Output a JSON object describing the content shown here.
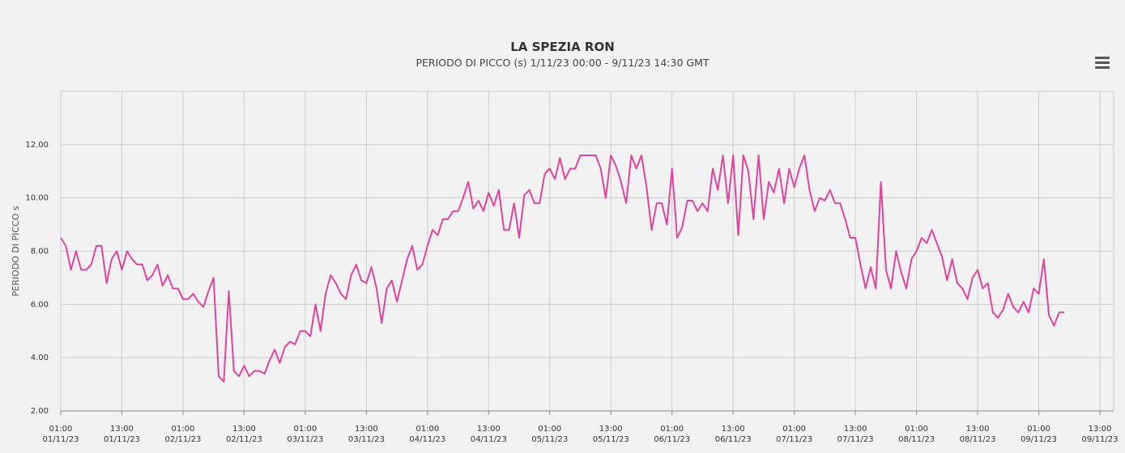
{
  "title": "LA SPEZIA RON",
  "subtitle": "PERIODO DI PICCO (s)   1/11/23 00:00 - 9/11/23 14:30 GMT",
  "menu_icon": "hamburger-menu-icon",
  "colors": {
    "series": "#e0449f",
    "grid": "#cccccc",
    "background": "#f2f2f2"
  },
  "chart_data": {
    "type": "line",
    "title": "LA SPEZIA RON",
    "subtitle": "PERIODO DI PICCO (s)   1/11/23 00:00 - 9/11/23 14:30 GMT",
    "ylabel": "PERIODO DI PICCO s",
    "xlabel": "",
    "ylim": [
      2,
      14
    ],
    "yticks": [
      "2.00",
      "4.00",
      "6.00",
      "8.00",
      "10.00",
      "12.00"
    ],
    "xticks": [
      {
        "time": "01:00",
        "date": "01/11/23"
      },
      {
        "time": "13:00",
        "date": "01/11/23"
      },
      {
        "time": "01:00",
        "date": "02/11/23"
      },
      {
        "time": "13:00",
        "date": "02/11/23"
      },
      {
        "time": "01:00",
        "date": "03/11/23"
      },
      {
        "time": "13:00",
        "date": "03/11/23"
      },
      {
        "time": "01:00",
        "date": "04/11/23"
      },
      {
        "time": "13:00",
        "date": "04/11/23"
      },
      {
        "time": "01:00",
        "date": "05/11/23"
      },
      {
        "time": "13:00",
        "date": "05/11/23"
      },
      {
        "time": "01:00",
        "date": "06/11/23"
      },
      {
        "time": "13:00",
        "date": "06/11/23"
      },
      {
        "time": "01:00",
        "date": "07/11/23"
      },
      {
        "time": "13:00",
        "date": "07/11/23"
      },
      {
        "time": "01:00",
        "date": "08/11/23"
      },
      {
        "time": "13:00",
        "date": "08/11/23"
      },
      {
        "time": "01:00",
        "date": "09/11/23"
      },
      {
        "time": "13:00",
        "date": "09/11/23"
      }
    ],
    "grid": true,
    "legend": "none",
    "series": [
      {
        "color": "#e0449f",
        "segments": [
          [
            [
              "01/11/23 01:00",
              8.5
            ],
            [
              "01/11/23 02:00",
              8.2
            ],
            [
              "01/11/23 03:00",
              7.3
            ],
            [
              "01/11/23 04:00",
              8.0
            ],
            [
              "01/11/23 05:00",
              7.3
            ],
            [
              "01/11/23 06:00",
              7.3
            ],
            [
              "01/11/23 07:00",
              7.5
            ],
            [
              "01/11/23 08:00",
              8.2
            ],
            [
              "01/11/23 09:00",
              8.2
            ],
            [
              "01/11/23 10:00",
              6.8
            ],
            [
              "01/11/23 11:00",
              7.7
            ],
            [
              "01/11/23 12:00",
              8.0
            ],
            [
              "01/11/23 13:00",
              7.3
            ],
            [
              "01/11/23 14:00",
              8.0
            ],
            [
              "01/11/23 15:00",
              7.7
            ],
            [
              "01/11/23 16:00",
              7.5
            ],
            [
              "01/11/23 17:00",
              7.5
            ],
            [
              "01/11/23 18:00",
              6.9
            ],
            [
              "01/11/23 19:00",
              7.1
            ],
            [
              "01/11/23 20:00",
              7.5
            ],
            [
              "01/11/23 21:00",
              6.7
            ],
            [
              "01/11/23 22:00",
              7.1
            ],
            [
              "01/11/23 23:00",
              6.6
            ],
            [
              "02/11/23 00:00",
              6.6
            ],
            [
              "02/11/23 01:00",
              6.2
            ],
            [
              "02/11/23 02:00",
              6.2
            ],
            [
              "02/11/23 03:00",
              6.4
            ],
            [
              "02/11/23 04:00",
              6.1
            ],
            [
              "02/11/23 05:00",
              5.9
            ],
            [
              "02/11/23 06:00",
              6.5
            ],
            [
              "02/11/23 07:00",
              7.0
            ],
            [
              "02/11/23 08:00",
              3.3
            ],
            [
              "02/11/23 09:00",
              3.1
            ],
            [
              "02/11/23 10:00",
              6.5
            ],
            [
              "02/11/23 11:00",
              3.5
            ],
            [
              "02/11/23 12:00",
              3.3
            ],
            [
              "02/11/23 13:00",
              3.7
            ],
            [
              "02/11/23 14:00",
              3.3
            ],
            [
              "02/11/23 15:00",
              3.5
            ],
            [
              "02/11/23 16:00",
              3.5
            ],
            [
              "02/11/23 17:00",
              3.4
            ],
            [
              "02/11/23 18:00",
              3.9
            ],
            [
              "02/11/23 19:00",
              4.3
            ],
            [
              "02/11/23 20:00",
              3.8
            ],
            [
              "02/11/23 21:00",
              4.4
            ],
            [
              "02/11/23 22:00",
              4.6
            ],
            [
              "02/11/23 23:00",
              4.5
            ],
            [
              "03/11/23 00:00",
              5.0
            ],
            [
              "03/11/23 01:00",
              5.0
            ],
            [
              "03/11/23 02:00",
              4.8
            ],
            [
              "03/11/23 03:00",
              6.0
            ],
            [
              "03/11/23 04:00",
              5.0
            ],
            [
              "03/11/23 05:00",
              6.4
            ],
            [
              "03/11/23 06:00",
              7.1
            ],
            [
              "03/11/23 07:00",
              6.8
            ],
            [
              "03/11/23 08:00",
              6.4
            ],
            [
              "03/11/23 09:00",
              6.2
            ],
            [
              "03/11/23 10:00",
              7.1
            ],
            [
              "03/11/23 11:00",
              7.5
            ],
            [
              "03/11/23 12:00",
              6.9
            ],
            [
              "03/11/23 13:00",
              6.8
            ],
            [
              "03/11/23 14:00",
              7.4
            ],
            [
              "03/11/23 15:00",
              6.6
            ],
            [
              "03/11/23 16:00",
              5.3
            ],
            [
              "03/11/23 17:00",
              6.6
            ],
            [
              "03/11/23 18:00",
              6.9
            ],
            [
              "03/11/23 19:00",
              6.1
            ],
            [
              "03/11/23 20:00",
              6.9
            ],
            [
              "03/11/23 21:00",
              7.7
            ],
            [
              "03/11/23 22:00",
              8.2
            ],
            [
              "03/11/23 23:00",
              7.3
            ],
            [
              "04/11/23 00:00",
              7.5
            ],
            [
              "04/11/23 01:00",
              8.2
            ],
            [
              "04/11/23 02:00",
              8.8
            ],
            [
              "04/11/23 03:00",
              8.6
            ],
            [
              "04/11/23 04:00",
              9.2
            ],
            [
              "04/11/23 05:00",
              9.2
            ],
            [
              "04/11/23 06:00",
              9.5
            ],
            [
              "04/11/23 07:00",
              9.5
            ],
            [
              "04/11/23 08:00",
              10.0
            ],
            [
              "04/11/23 09:00",
              10.6
            ],
            [
              "04/11/23 10:00",
              9.6
            ],
            [
              "04/11/23 11:00",
              9.9
            ],
            [
              "04/11/23 12:00",
              9.5
            ],
            [
              "04/11/23 13:00",
              10.2
            ],
            [
              "04/11/23 14:00",
              9.7
            ],
            [
              "04/11/23 15:00",
              10.3
            ],
            [
              "04/11/23 16:00",
              8.8
            ],
            [
              "04/11/23 17:00",
              8.8
            ],
            [
              "04/11/23 18:00",
              9.8
            ],
            [
              "04/11/23 19:00",
              8.5
            ],
            [
              "04/11/23 20:00",
              10.1
            ],
            [
              "04/11/23 21:00",
              10.3
            ],
            [
              "04/11/23 22:00",
              9.8
            ],
            [
              "04/11/23 23:00",
              9.8
            ],
            [
              "05/11/23 00:00",
              10.9
            ],
            [
              "05/11/23 01:00",
              11.1
            ],
            [
              "05/11/23 02:00",
              10.7
            ],
            [
              "05/11/23 03:00",
              11.5
            ],
            [
              "05/11/23 04:00",
              10.7
            ],
            [
              "05/11/23 05:00",
              11.1
            ],
            [
              "05/11/23 06:00",
              11.1
            ],
            [
              "05/11/23 07:00",
              11.6
            ],
            [
              "05/11/23 08:00",
              11.6
            ],
            [
              "05/11/23 09:00",
              11.6
            ],
            [
              "05/11/23 10:00",
              11.6
            ],
            [
              "05/11/23 11:00",
              11.1
            ],
            [
              "05/11/23 12:00",
              10.0
            ],
            [
              "05/11/23 13:00",
              11.6
            ],
            [
              "05/11/23 14:00",
              11.2
            ],
            [
              "05/11/23 15:00",
              10.6
            ],
            [
              "05/11/23 16:00",
              9.8
            ],
            [
              "05/11/23 17:00",
              11.6
            ],
            [
              "05/11/23 18:00",
              11.1
            ],
            [
              "05/11/23 19:00",
              11.6
            ],
            [
              "05/11/23 20:00",
              10.4
            ],
            [
              "05/11/23 21:00",
              8.8
            ],
            [
              "05/11/23 22:00",
              9.8
            ],
            [
              "05/11/23 23:00",
              9.8
            ],
            [
              "06/11/23 00:00",
              9.0
            ],
            [
              "06/11/23 01:00",
              11.1
            ],
            [
              "06/11/23 02:00",
              8.5
            ],
            [
              "06/11/23 03:00",
              8.9
            ],
            [
              "06/11/23 04:00",
              9.9
            ],
            [
              "06/11/23 05:00",
              9.9
            ],
            [
              "06/11/23 06:00",
              9.5
            ],
            [
              "06/11/23 07:00",
              9.8
            ],
            [
              "06/11/23 08:00",
              9.5
            ],
            [
              "06/11/23 09:00",
              11.1
            ],
            [
              "06/11/23 10:00",
              10.3
            ],
            [
              "06/11/23 11:00",
              11.6
            ],
            [
              "06/11/23 12:00",
              9.8
            ],
            [
              "06/11/23 13:00",
              11.6
            ],
            [
              "06/11/23 14:00",
              8.6
            ],
            [
              "06/11/23 15:00",
              11.6
            ],
            [
              "06/11/23 16:00",
              11.0
            ],
            [
              "06/11/23 17:00",
              9.2
            ],
            [
              "06/11/23 18:00",
              11.6
            ],
            [
              "06/11/23 19:00",
              9.2
            ],
            [
              "06/11/23 20:00",
              10.6
            ],
            [
              "06/11/23 21:00",
              10.2
            ],
            [
              "06/11/23 22:00",
              11.1
            ],
            [
              "06/11/23 23:00",
              9.8
            ],
            [
              "07/11/23 00:00",
              11.1
            ],
            [
              "07/11/23 01:00",
              10.4
            ],
            [
              "07/11/23 02:00",
              11.1
            ],
            [
              "07/11/23 03:00",
              11.6
            ],
            [
              "07/11/23 04:00",
              10.3
            ],
            [
              "07/11/23 05:00",
              9.5
            ],
            [
              "07/11/23 06:00",
              10.0
            ],
            [
              "07/11/23 07:00",
              9.9
            ],
            [
              "07/11/23 08:00",
              10.3
            ],
            [
              "07/11/23 09:00",
              9.8
            ],
            [
              "07/11/23 10:00",
              9.8
            ],
            [
              "07/11/23 11:00",
              9.2
            ],
            [
              "07/11/23 12:00",
              8.5
            ],
            [
              "07/11/23 13:00",
              8.5
            ],
            [
              "07/11/23 14:00",
              7.5
            ],
            [
              "07/11/23 15:00",
              6.6
            ],
            [
              "07/11/23 16:00",
              7.4
            ],
            [
              "07/11/23 17:00",
              6.6
            ],
            [
              "07/11/23 18:00",
              10.6
            ],
            [
              "07/11/23 19:00",
              7.3
            ],
            [
              "07/11/23 20:00",
              6.6
            ],
            [
              "07/11/23 21:00",
              8.0
            ],
            [
              "07/11/23 22:00",
              7.2
            ],
            [
              "07/11/23 23:00",
              6.6
            ],
            [
              "08/11/23 00:00",
              7.7
            ],
            [
              "08/11/23 01:00",
              8.0
            ],
            [
              "08/11/23 02:00",
              8.5
            ],
            [
              "08/11/23 03:00",
              8.3
            ],
            [
              "08/11/23 04:00",
              8.8
            ],
            [
              "08/11/23 05:00",
              8.3
            ],
            [
              "08/11/23 06:00",
              7.8
            ],
            [
              "08/11/23 07:00",
              6.9
            ],
            [
              "08/11/23 08:00",
              7.7
            ],
            [
              "08/11/23 09:00",
              6.8
            ],
            [
              "08/11/23 10:00",
              6.6
            ],
            [
              "08/11/23 11:00",
              6.2
            ],
            [
              "08/11/23 12:00",
              7.0
            ],
            [
              "08/11/23 13:00",
              7.3
            ],
            [
              "08/11/23 14:00",
              6.6
            ],
            [
              "08/11/23 15:00",
              6.8
            ],
            [
              "08/11/23 16:00",
              5.7
            ],
            [
              "08/11/23 17:00",
              5.5
            ],
            [
              "08/11/23 18:00",
              5.8
            ],
            [
              "08/11/23 19:00",
              6.4
            ],
            [
              "08/11/23 20:00",
              5.9
            ],
            [
              "08/11/23 21:00",
              5.7
            ],
            [
              "08/11/23 22:00",
              6.1
            ],
            [
              "08/11/23 23:00",
              5.7
            ],
            [
              "09/11/23 00:00",
              6.6
            ],
            [
              "09/11/23 01:00",
              6.4
            ],
            [
              "09/11/23 02:00",
              7.7
            ],
            [
              "09/11/23 03:00",
              5.6
            ],
            [
              "09/11/23 04:00",
              5.2
            ],
            [
              "09/11/23 05:00",
              5.7
            ],
            [
              "09/11/23 06:00",
              5.7
            ]
          ]
        ]
      }
    ]
  }
}
